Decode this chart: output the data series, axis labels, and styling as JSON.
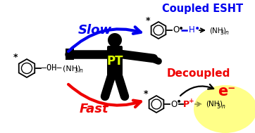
{
  "bg_color": "#ffffff",
  "title_coupled": "Coupled ESHT",
  "title_decoupled": "Decoupled",
  "label_slow": "Slow",
  "label_fast": "Fast",
  "label_pt": "PT",
  "label_eminus": "e⁻",
  "blue_color": "#0000ee",
  "red_color": "#ee0000",
  "black_color": "#000000",
  "yellow_green": "#ddff00",
  "figsize": [
    3.62,
    1.89
  ],
  "dpi": 100
}
